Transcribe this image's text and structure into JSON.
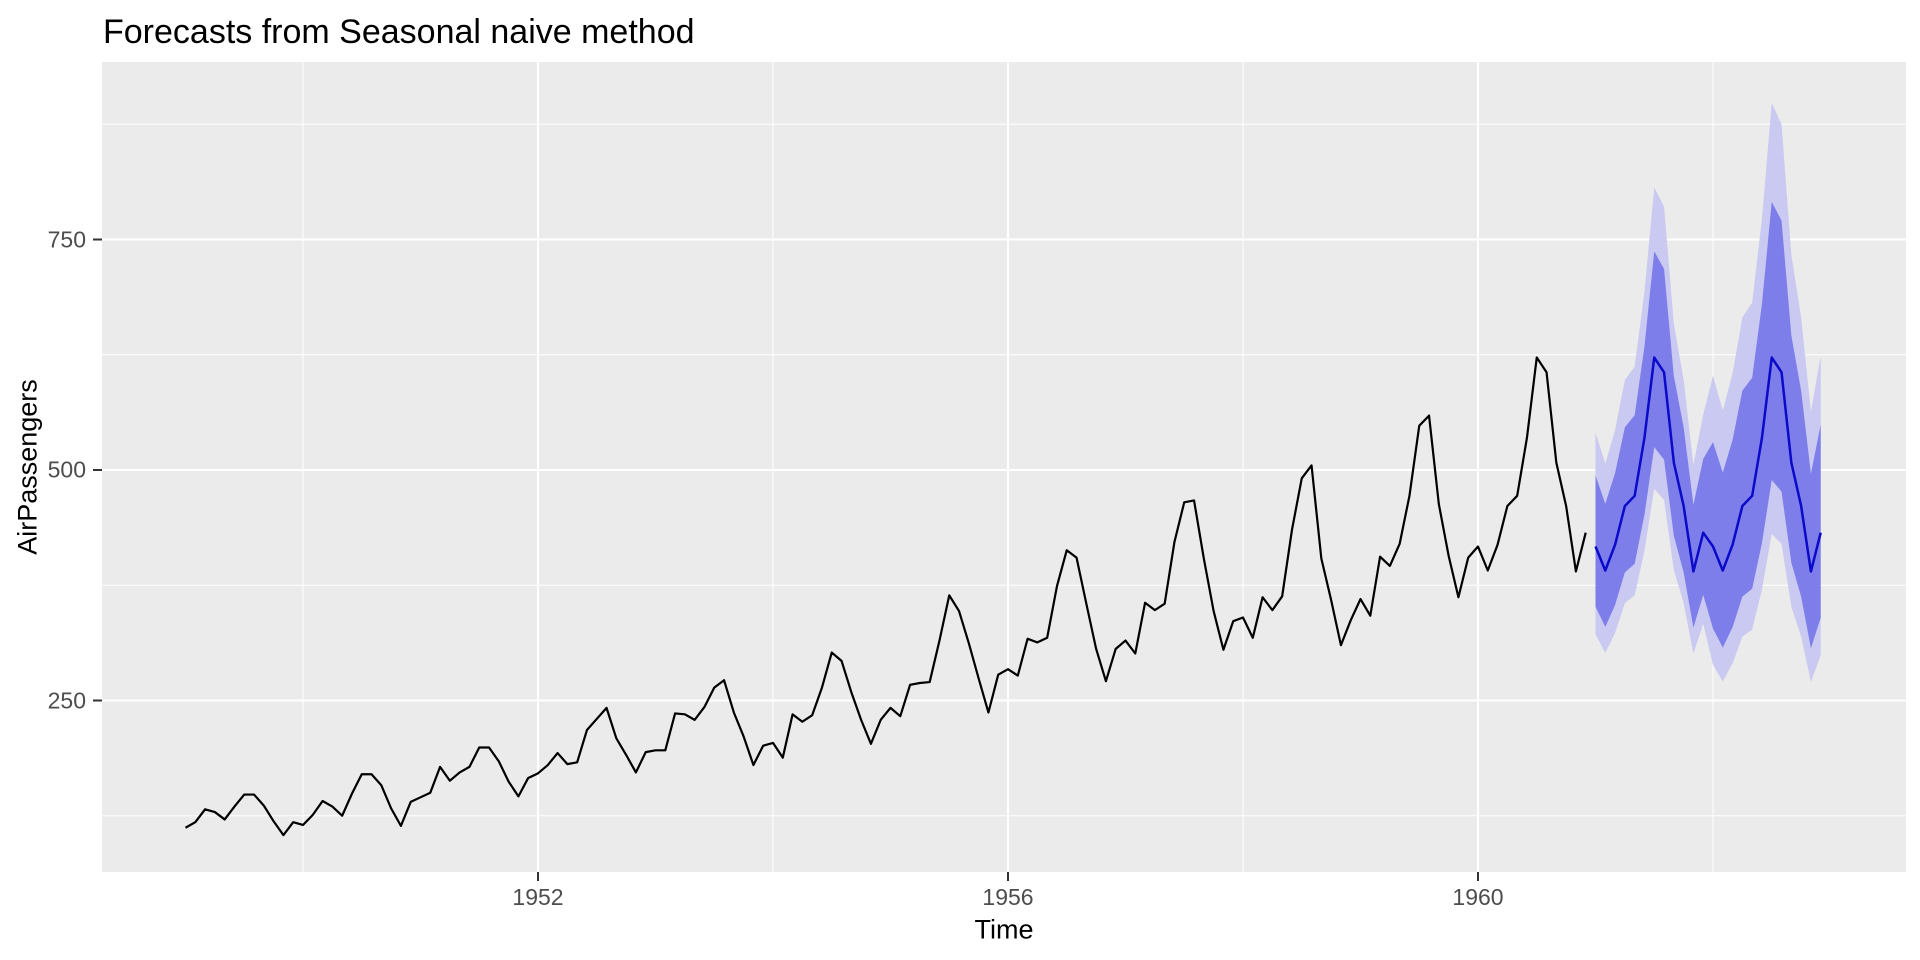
{
  "title": "Forecasts from Seasonal naive method",
  "axis": {
    "tick_color": "#333333",
    "tick_label_color": "#4D4D4D"
  },
  "chart_data": {
    "type": "line",
    "title": "Forecasts from Seasonal naive method",
    "xlabel": "Time",
    "ylabel": "AirPassengers",
    "x_ticks": [
      1952,
      1956,
      1960
    ],
    "x_minor_ticks": [
      1950,
      1954,
      1958,
      1962
    ],
    "y_ticks": [
      250,
      500,
      750
    ],
    "y_minor_ticks": [
      125,
      375,
      625,
      875
    ],
    "xlim": [
      1948.3,
      1963.65
    ],
    "ylim": [
      64,
      942
    ],
    "grid": "on",
    "legend": "none",
    "panel_background": "#EBEBEB",
    "gridline_color": "#FFFFFF",
    "series": [
      {
        "name": "AirPassengers observed",
        "start": 1949,
        "frequency": 12,
        "color": "#000000",
        "values": [
          112,
          118,
          132,
          129,
          121,
          135,
          148,
          148,
          136,
          119,
          104,
          118,
          115,
          126,
          141,
          135,
          125,
          149,
          170,
          170,
          158,
          133,
          114,
          140,
          145,
          150,
          178,
          163,
          172,
          178,
          199,
          199,
          184,
          162,
          146,
          166,
          171,
          180,
          193,
          181,
          183,
          218,
          230,
          242,
          209,
          191,
          172,
          194,
          196,
          196,
          236,
          235,
          229,
          243,
          264,
          272,
          237,
          211,
          180,
          201,
          204,
          188,
          235,
          227,
          234,
          264,
          302,
          293,
          259,
          229,
          203,
          229,
          242,
          233,
          267,
          269,
          270,
          315,
          364,
          347,
          312,
          274,
          237,
          278,
          284,
          277,
          317,
          313,
          318,
          374,
          413,
          405,
          355,
          306,
          271,
          306,
          315,
          301,
          356,
          348,
          355,
          422,
          465,
          467,
          404,
          347,
          305,
          336,
          340,
          318,
          362,
          348,
          363,
          435,
          491,
          505,
          404,
          359,
          310,
          337,
          360,
          342,
          406,
          396,
          420,
          472,
          548,
          559,
          463,
          407,
          362,
          405,
          417,
          391,
          419,
          461,
          472,
          535,
          622,
          606,
          508,
          461,
          390,
          432
        ]
      },
      {
        "name": "Seasonal naive point forecast",
        "start": 1961,
        "frequency": 12,
        "color": "#0A0AC8",
        "values": [
          417,
          391,
          419,
          461,
          472,
          535,
          622,
          606,
          508,
          461,
          390,
          432,
          417,
          391,
          419,
          461,
          472,
          535,
          622,
          606,
          508,
          461,
          390,
          432
        ]
      }
    ],
    "intervals": [
      {
        "level": 95,
        "fill": "#C9C9F1",
        "start": 1961,
        "frequency": 12,
        "lower": [
          321.6,
          301.6,
          323.2,
          355.6,
          364.1,
          412.6,
          479.7,
          467.4,
          391.8,
          355.6,
          300.8,
          333.2,
          288.8,
          270.8,
          290.2,
          319.3,
          326.9,
          370.5,
          430.8,
          419.7,
          351.8,
          319.3,
          270.1,
          299.2
        ],
        "upper": [
          540.6,
          506.9,
          543.2,
          597.7,
          612.0,
          693.6,
          806.4,
          785.7,
          658.6,
          597.7,
          505.6,
          560.1,
          602.1,
          564.5,
          605.0,
          665.6,
          681.5,
          772.4,
          898.0,
          874.9,
          733.5,
          665.6,
          563.1,
          623.7
        ]
      },
      {
        "level": 80,
        "fill": "#7D7EE9",
        "start": 1961,
        "frequency": 12,
        "lower": [
          351.9,
          329.9,
          353.6,
          389.0,
          398.3,
          451.4,
          524.8,
          511.3,
          428.7,
          389.0,
          329.1,
          364.5,
          328.0,
          307.5,
          329.5,
          362.6,
          371.2,
          420.8,
          489.2,
          476.6,
          399.5,
          362.6,
          306.7,
          339.8
        ],
        "upper": [
          494.2,
          463.4,
          496.6,
          546.3,
          559.4,
          634.0,
          737.1,
          718.2,
          602.0,
          546.3,
          462.2,
          512.0,
          530.2,
          497.1,
          532.7,
          586.1,
          600.1,
          680.2,
          790.8,
          770.5,
          645.9,
          586.1,
          495.8,
          549.2
        ]
      }
    ]
  }
}
